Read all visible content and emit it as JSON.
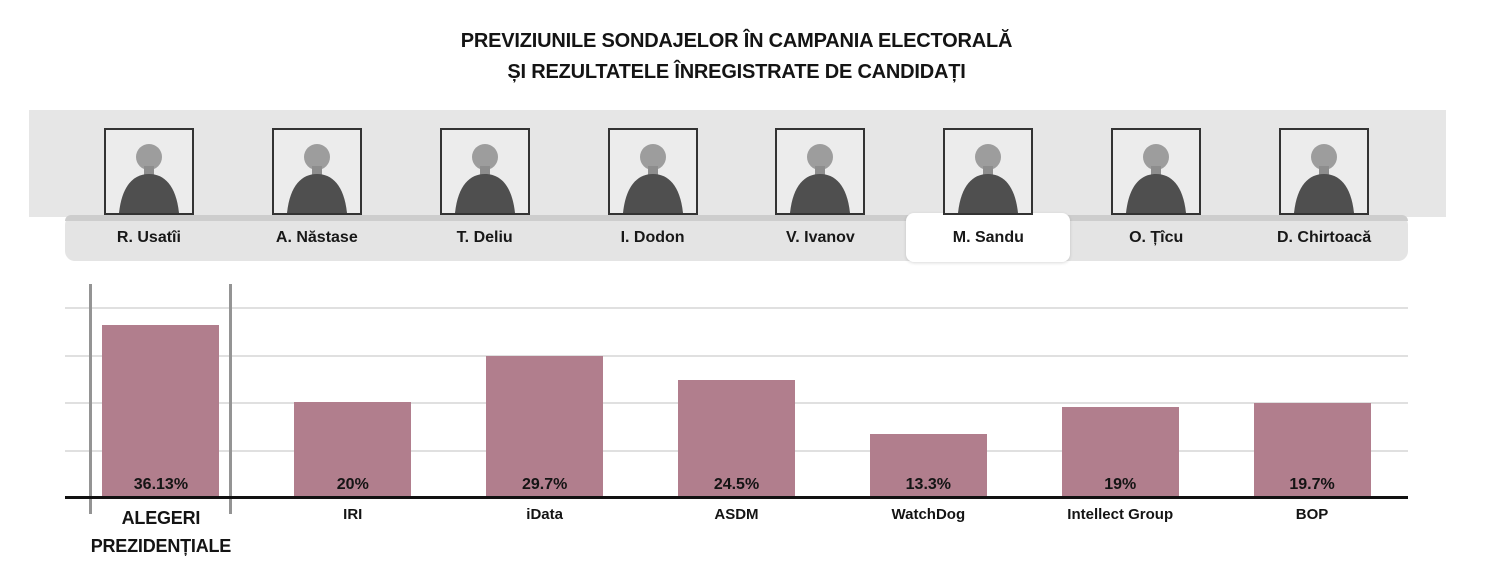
{
  "title": {
    "line1": "PREVIZIUNILE SONDAJELOR ÎN CAMPANIA ELECTORALĂ",
    "line2": "ȘI REZULTATELE ÎNREGISTRATE DE CANDIDAȚI"
  },
  "candidates": {
    "selected": "M. Sandu",
    "items": [
      {
        "name": "R. Usatîi",
        "selected": false
      },
      {
        "name": "A. Năstase",
        "selected": false
      },
      {
        "name": "T. Deliu",
        "selected": false
      },
      {
        "name": "I. Dodon",
        "selected": false
      },
      {
        "name": "V. Ivanov",
        "selected": false
      },
      {
        "name": "M. Sandu",
        "selected": true
      },
      {
        "name": "O. Țîcu",
        "selected": false
      },
      {
        "name": "D. Chirtoacă",
        "selected": false
      }
    ]
  },
  "chart_data": {
    "type": "bar",
    "title": "PREVIZIUNILE SONDAJELOR ÎN CAMPANIA ELECTORALĂ ȘI REZULTATELE ÎNREGISTRATE DE CANDIDAȚI",
    "selected_candidate": "M. Sandu",
    "categories": [
      "ALEGERI PREZIDENȚIALE",
      "IRI",
      "iData",
      "ASDM",
      "WatchDog",
      "Intellect Group",
      "BOP"
    ],
    "values": [
      36.13,
      20,
      29.7,
      24.5,
      13.3,
      19,
      19.7
    ],
    "value_labels": [
      "36.13%",
      "20%",
      "29.7%",
      "24.5%",
      "13.3%",
      "19%",
      "19.7%"
    ],
    "highlighted_category": "ALEGERI PREZIDENȚIALE",
    "xlabel": "",
    "ylabel": "",
    "ylim": [
      0,
      50
    ],
    "gridlines_at": [
      10,
      20,
      30,
      40
    ],
    "grid": true,
    "legend": null
  },
  "colors": {
    "bar": "#b17e8d",
    "photo_band": "#e6e6e6",
    "tab_row": "#e4e4e4",
    "tab_row_edge": "#cdcdcd",
    "selected_tab": "#ffffff",
    "baseline": "#111111",
    "gridline": "#e0e0e0",
    "highlight_marker": "#949494",
    "text": "#141414"
  },
  "icons": {
    "photo_placeholder": "portrait-silhouette-icon"
  }
}
